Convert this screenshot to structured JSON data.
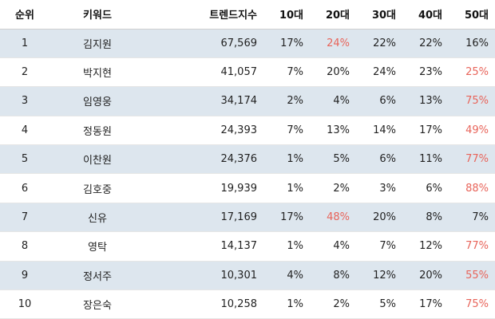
{
  "table": {
    "headers": {
      "rank": "순위",
      "keyword": "키워드",
      "trend": "트렌드지수",
      "age10": "10대",
      "age20": "20대",
      "age30": "30대",
      "age40": "40대",
      "age50": "50대"
    },
    "highlight_color": "#e8645a",
    "stripe_color": "#dde6ee",
    "rows": [
      {
        "rank": "1",
        "keyword": "김지원",
        "trend": "67,569",
        "age10": "17%",
        "age20": "24%",
        "age30": "22%",
        "age40": "22%",
        "age50": "16%",
        "highlight": "age20"
      },
      {
        "rank": "2",
        "keyword": "박지현",
        "trend": "41,057",
        "age10": "7%",
        "age20": "20%",
        "age30": "24%",
        "age40": "23%",
        "age50": "25%",
        "highlight": "age50"
      },
      {
        "rank": "3",
        "keyword": "임영웅",
        "trend": "34,174",
        "age10": "2%",
        "age20": "4%",
        "age30": "6%",
        "age40": "13%",
        "age50": "75%",
        "highlight": "age50"
      },
      {
        "rank": "4",
        "keyword": "정동원",
        "trend": "24,393",
        "age10": "7%",
        "age20": "13%",
        "age30": "14%",
        "age40": "17%",
        "age50": "49%",
        "highlight": "age50"
      },
      {
        "rank": "5",
        "keyword": "이찬원",
        "trend": "24,376",
        "age10": "1%",
        "age20": "5%",
        "age30": "6%",
        "age40": "11%",
        "age50": "77%",
        "highlight": "age50"
      },
      {
        "rank": "6",
        "keyword": "김호중",
        "trend": "19,939",
        "age10": "1%",
        "age20": "2%",
        "age30": "3%",
        "age40": "6%",
        "age50": "88%",
        "highlight": "age50"
      },
      {
        "rank": "7",
        "keyword": "신유",
        "trend": "17,169",
        "age10": "17%",
        "age20": "48%",
        "age30": "20%",
        "age40": "8%",
        "age50": "7%",
        "highlight": "age20"
      },
      {
        "rank": "8",
        "keyword": "영탁",
        "trend": "14,137",
        "age10": "1%",
        "age20": "4%",
        "age30": "7%",
        "age40": "12%",
        "age50": "77%",
        "highlight": "age50"
      },
      {
        "rank": "9",
        "keyword": "정서주",
        "trend": "10,301",
        "age10": "4%",
        "age20": "8%",
        "age30": "12%",
        "age40": "20%",
        "age50": "55%",
        "highlight": "age50"
      },
      {
        "rank": "10",
        "keyword": "장은숙",
        "trend": "10,258",
        "age10": "1%",
        "age20": "2%",
        "age30": "5%",
        "age40": "17%",
        "age50": "75%",
        "highlight": "age50"
      }
    ]
  }
}
